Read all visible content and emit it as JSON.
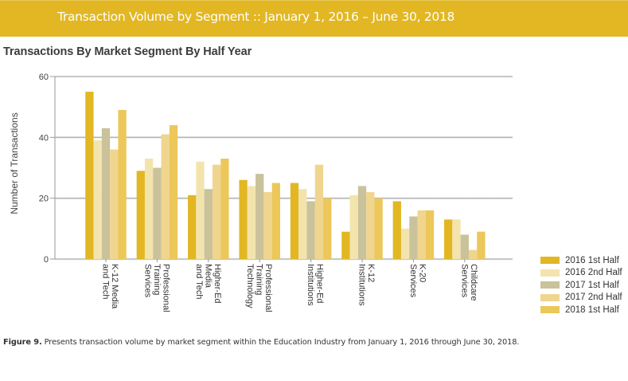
{
  "banner": {
    "title": "Transaction Volume by Segment :: January 1, 2016 – June 30, 2018",
    "color": "#E2B723"
  },
  "chart_data": {
    "type": "bar",
    "title": "Transactions By Market Segment By Half Year",
    "xlabel": "",
    "ylabel": "Number of Transactions",
    "ylim": [
      0,
      60
    ],
    "yticks": [
      0,
      20,
      40,
      60
    ],
    "grid": true,
    "legend_position": "bottom-right",
    "categories": [
      [
        "K-12 Media",
        "and Tech"
      ],
      [
        "Professional",
        "Training",
        "Services"
      ],
      [
        "Higher-Ed",
        "Media",
        "and Tech"
      ],
      [
        "Professional",
        "Training",
        "Technology"
      ],
      [
        "Higher-Ed",
        "Institutions"
      ],
      [
        "K-12",
        "Institutions"
      ],
      [
        "K-20",
        "Services"
      ],
      [
        "Childcare",
        "Services"
      ]
    ],
    "series": [
      {
        "name": "2016 1st Half",
        "color": "#E2B723",
        "values": [
          55,
          29,
          21,
          26,
          25,
          9,
          19,
          13
        ]
      },
      {
        "name": "2016 2nd Half",
        "color": "#F3E4AE",
        "values": [
          39,
          33,
          32,
          24,
          23,
          21,
          10,
          13
        ]
      },
      {
        "name": "2017 1st Half",
        "color": "#C9C29A",
        "values": [
          43,
          30,
          23,
          28,
          19,
          24,
          14,
          8
        ]
      },
      {
        "name": "2017 2nd Half",
        "color": "#F0D58E",
        "values": [
          36,
          41,
          31,
          22,
          31,
          22,
          16,
          3
        ]
      },
      {
        "name": "2018 1st Half",
        "color": "#ECC75A",
        "values": [
          49,
          44,
          33,
          25,
          20,
          20,
          16,
          9
        ]
      }
    ]
  },
  "caption": {
    "label": "Figure 9.",
    "text": " Presents transaction volume by market segment within the Education Industry from January 1, 2016 through June 30, 2018."
  }
}
